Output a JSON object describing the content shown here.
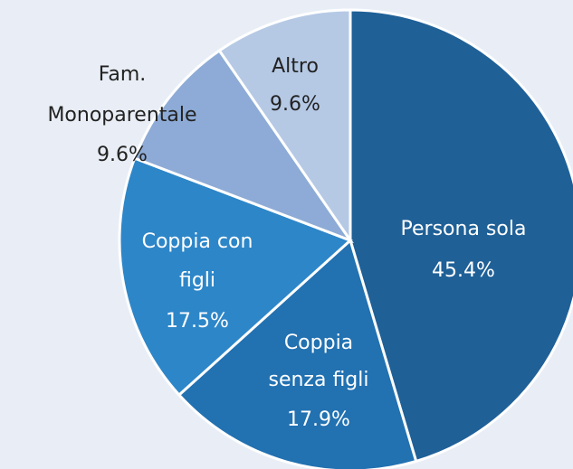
{
  "chart_data": {
    "type": "pie",
    "categories": [
      "Persona sola",
      "Coppia senza figli",
      "Coppia con figli",
      "Fam. Monoparentale",
      "Altro"
    ],
    "values": [
      45.4,
      17.9,
      17.5,
      9.6,
      9.6
    ],
    "value_labels": [
      "45.4%",
      "17.9%",
      "17.5%",
      "9.6%",
      "9.6%"
    ],
    "colors": [
      "#1f6097",
      "#2271b1",
      "#2d86c8",
      "#8dabd6",
      "#b5c9e5"
    ]
  }
}
